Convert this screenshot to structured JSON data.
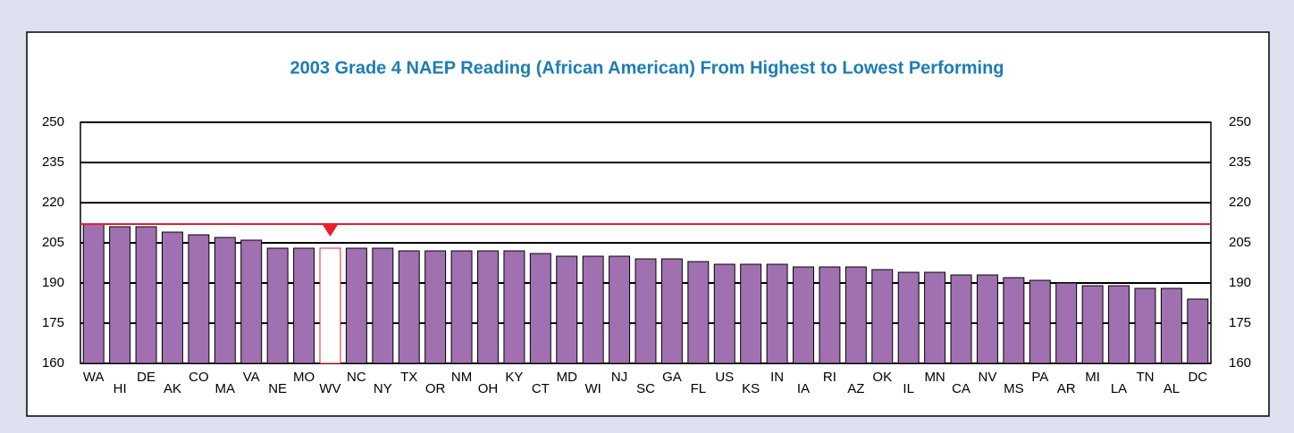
{
  "chart_data": {
    "type": "bar",
    "title": "2003 Grade 4 NAEP Reading (African American) From Highest to Lowest Performing",
    "categories": [
      "WA",
      "HI",
      "DE",
      "AK",
      "CO",
      "MA",
      "VA",
      "NE",
      "MO",
      "WV",
      "NC",
      "NY",
      "TX",
      "OR",
      "NM",
      "OH",
      "KY",
      "CT",
      "MD",
      "WI",
      "NJ",
      "SC",
      "GA",
      "FL",
      "US",
      "KS",
      "IN",
      "IA",
      "RI",
      "AZ",
      "OK",
      "IL",
      "MN",
      "CA",
      "NV",
      "MS",
      "PA",
      "AR",
      "MI",
      "LA",
      "TN",
      "AL",
      "DC"
    ],
    "values": [
      212,
      211,
      211,
      209,
      208,
      207,
      206,
      203,
      203,
      203,
      203,
      203,
      202,
      202,
      202,
      202,
      202,
      201,
      200,
      200,
      200,
      199,
      199,
      198,
      197,
      197,
      197,
      196,
      196,
      196,
      195,
      194,
      194,
      193,
      193,
      192,
      191,
      190,
      189,
      189,
      188,
      188,
      184
    ],
    "colors": [
      "#a070b0",
      "#a070b0",
      "#a070b0",
      "#a070b0",
      "#a070b0",
      "#a070b0",
      "#a070b0",
      "#a070b0",
      "#a070b0",
      "#ffffff",
      "#a070b0",
      "#a070b0",
      "#a070b0",
      "#a070b0",
      "#a070b0",
      "#a070b0",
      "#a070b0",
      "#a070b0",
      "#a070b0",
      "#a070b0",
      "#a070b0",
      "#a070b0",
      "#a070b0",
      "#a070b0",
      "#a070b0",
      "#a070b0",
      "#a070b0",
      "#a070b0",
      "#a070b0",
      "#a070b0",
      "#a070b0",
      "#a070b0",
      "#a070b0",
      "#a070b0",
      "#a070b0",
      "#a070b0",
      "#a070b0",
      "#a070b0",
      "#a070b0",
      "#a070b0",
      "#a070b0",
      "#a070b0",
      "#a070b0"
    ],
    "reference_line": 212,
    "reference_color": "#e8202a",
    "ylim": [
      160,
      250
    ],
    "yticks": [
      160,
      175,
      190,
      205,
      220,
      235,
      250
    ],
    "grid": true
  }
}
